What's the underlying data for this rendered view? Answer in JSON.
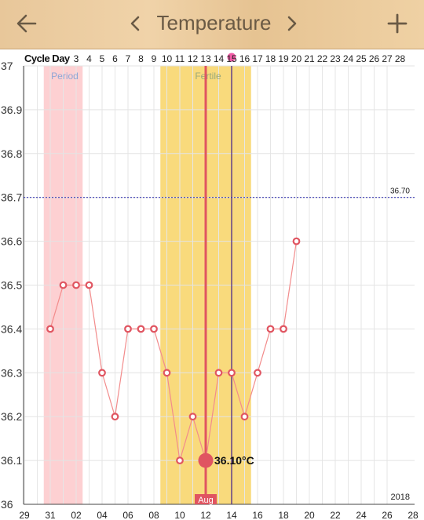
{
  "header": {
    "back_icon": "arrow-left-icon",
    "prev_icon": "chevron-left-icon",
    "title": "Temperature",
    "next_icon": "chevron-right-icon",
    "add_icon": "plus-icon"
  },
  "colors": {
    "period": "#fdd0d2",
    "fertile": "#f9da7c",
    "line": "#f28c8c",
    "today": "#e05561",
    "reference": "#3a3ab3",
    "ovulation": "#4b2a8a"
  },
  "chart_data": {
    "type": "line",
    "cycle_day_label": "Cycle Day",
    "cycle_days": [
      "3",
      "4",
      "5",
      "6",
      "7",
      "8",
      "9",
      "10",
      "11",
      "12",
      "13",
      "14",
      "15",
      "16",
      "17",
      "18",
      "19",
      "20",
      "21",
      "22",
      "23",
      "24",
      "25",
      "26",
      "27",
      "28"
    ],
    "x_tick_labels": [
      "29",
      "31",
      "02",
      "04",
      "06",
      "08",
      "10",
      "12",
      "14",
      "16",
      "18",
      "20",
      "22",
      "24",
      "26",
      "28"
    ],
    "ylim": [
      36,
      37
    ],
    "y_ticks": [
      "37",
      "36.9",
      "36.8",
      "36.7",
      "36.6",
      "36.5",
      "36.4",
      "36.3",
      "36.2",
      "36.1",
      "36"
    ],
    "year_label": "2018",
    "month_label": "Aug",
    "reference_line": {
      "value": 36.7,
      "label": "36.70"
    },
    "period_label": "Period",
    "fertile_label": "Fertile",
    "period_days": [
      1,
      3
    ],
    "fertile_days": [
      10,
      16
    ],
    "today_day": 13,
    "ovulation_day": 15,
    "today_value_label": "36.10°C",
    "series": [
      {
        "x": [
          1,
          2,
          3,
          4,
          5,
          6,
          7,
          8,
          9,
          10,
          11,
          12,
          13,
          14,
          15,
          16,
          17,
          18,
          19,
          20
        ],
        "values": [
          36.4,
          36.5,
          36.5,
          36.5,
          36.3,
          36.2,
          36.4,
          36.4,
          36.4,
          36.3,
          36.1,
          36.2,
          36.1,
          36.3,
          36.3,
          36.2,
          36.3,
          36.4,
          36.4,
          36.6
        ]
      }
    ]
  }
}
